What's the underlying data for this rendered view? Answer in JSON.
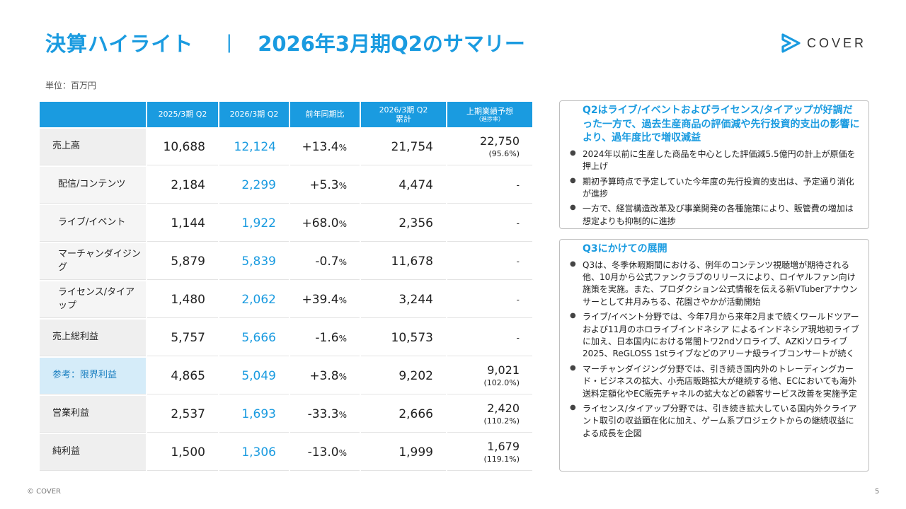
{
  "header": {
    "title_main": "決算ハイライト",
    "separator": "|",
    "title_sub": "2026年3月期Q2のサマリー",
    "logo_text": "COVER",
    "logo_icon": "cover-logo-icon",
    "accent_color": "#1a9be0"
  },
  "unit": "単位：百万円",
  "table": {
    "headers": [
      "",
      "2025/3期 Q2",
      "2026/3期 Q2",
      "前年同期比",
      "2026/3期 Q2\n累計",
      "上期業績予想"
    ],
    "forecast_sub": "（進捗率）",
    "rows": [
      {
        "label": "売上高",
        "prev": "10,688",
        "curr": "12,124",
        "yoy": "+13.4",
        "cum": "21,754",
        "fc": "22,750",
        "fc_pct": "(95.6%)"
      },
      {
        "label": "配信/コンテンツ",
        "prev": "2,184",
        "curr": "2,299",
        "yoy": "+5.3",
        "cum": "4,474",
        "fc": "-",
        "fc_pct": ""
      },
      {
        "label": "ライブ/イベント",
        "prev": "1,144",
        "curr": "1,922",
        "yoy": "+68.0",
        "cum": "2,356",
        "fc": "-",
        "fc_pct": ""
      },
      {
        "label": "マーチャンダイジング",
        "prev": "5,879",
        "curr": "5,839",
        "yoy": "-0.7",
        "cum": "11,678",
        "fc": "-",
        "fc_pct": ""
      },
      {
        "label": "ライセンス/タイアップ",
        "prev": "1,480",
        "curr": "2,062",
        "yoy": "+39.4",
        "cum": "3,244",
        "fc": "-",
        "fc_pct": ""
      },
      {
        "label": "売上総利益",
        "prev": "5,757",
        "curr": "5,666",
        "yoy": "-1.6",
        "cum": "10,573",
        "fc": "-",
        "fc_pct": ""
      },
      {
        "label": "参考：限界利益",
        "prev": "4,865",
        "curr": "5,049",
        "yoy": "+3.8",
        "cum": "9,202",
        "fc": "9,021",
        "fc_pct": "(102.0%)"
      },
      {
        "label": "営業利益",
        "prev": "2,537",
        "curr": "1,693",
        "yoy": "-33.3",
        "cum": "2,666",
        "fc": "2,420",
        "fc_pct": "(110.2%)"
      },
      {
        "label": "純利益",
        "prev": "1,500",
        "curr": "1,306",
        "yoy": "-13.0",
        "cum": "1,999",
        "fc": "1,679",
        "fc_pct": "(119.1%)"
      }
    ],
    "pct_sign": "%"
  },
  "box1": {
    "heading": "Q2はライブ/イベントおよびライセンス/タイアップが好調だった一方で、過去生産商品の評価減や先行投資的支出の影響により、過年度比で増収減益",
    "bullets": [
      "2024年以前に生産した商品を中心とした評価減5.5億円の計上が原価を押上げ",
      "期初予算時点で予定していた今年度の先行投資的支出は、予定通り消化が進捗",
      "一方で、経営構造改革及び事業開発の各種施策により、販管費の増加は想定よりも抑制的に進捗"
    ]
  },
  "box2": {
    "heading": "Q3にかけての展開",
    "bullets": [
      "Q3は、冬季休暇期間における、例年のコンテンツ視聴増が期待される他、10月から公式ファンクラブのリリースにより、ロイヤルファン向け施策を実施。また、プロダクション公式情報を伝える新VTuberアナウンサーとして井月みちる、花園さやかが活動開始",
      "ライブ/イベント分野では、今年7月から来年2月まで続くワールドツアーおよび11月のホロライブインドネシア によるインドネシア現地初ライブに加え、日本国内における常闇トワ2ndソロライブ、AZKiソロライブ2025、ReGLOSS 1stライブなどのアリーナ級ライブコンサートが続く",
      "マーチャンダイジング分野では、引き続き国内外のトレーディングカード・ビジネスの拡大、小売店販路拡大が継続する他、ECにおいても海外送料定額化やEC販売チャネルの拡大などの顧客サービス改善を実施予定",
      "ライセンス/タイアップ分野では、引き続き拡大している国内外クライアント取引の収益顕在化に加え、ゲーム系プロジェクトからの継続収益による成長を企図"
    ]
  },
  "footer": {
    "copyright": "© COVER",
    "page_number": "5"
  }
}
